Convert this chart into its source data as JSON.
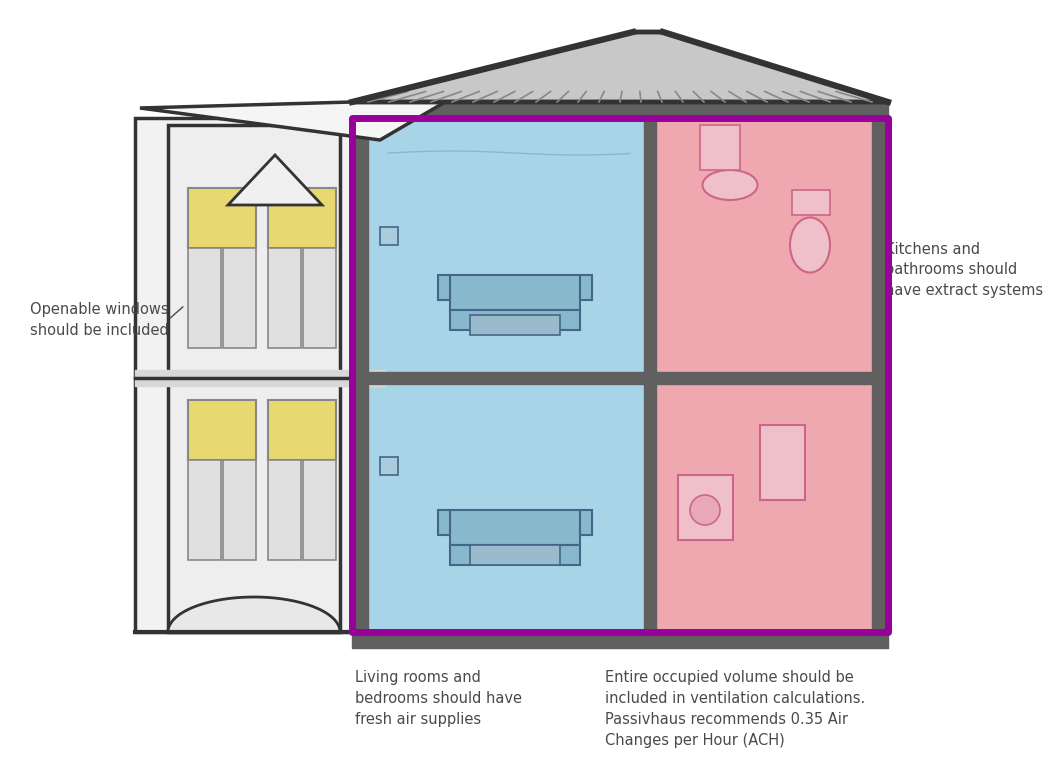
{
  "background_color": "#ffffff",
  "text_color": "#4a4a4a",
  "blue_room_color": "#a8d4e8",
  "pink_room_color": "#f0a8b0",
  "yellow_window_color": "#e8d870",
  "purple_border_color": "#990099",
  "wall_color": "#606060",
  "dark_color": "#333333",
  "light_gray": "#e8e8e8",
  "roof_fill": "#d0d0d0",
  "annotation_openable_windows": "Openable windows\nshould be included",
  "annotation_living_rooms": "Living rooms and\nbedrooms should have\nfresh air supplies",
  "annotation_kitchens": "Kitchens and\nbathrooms should\nhave extract systems",
  "annotation_occupied_volume": "Entire occupied volume should be\nincluded in ventilation calculations.\nPassivhaus recommends 0.35 Air\nChanges per Hour (ACH)",
  "font_size": 10.5
}
